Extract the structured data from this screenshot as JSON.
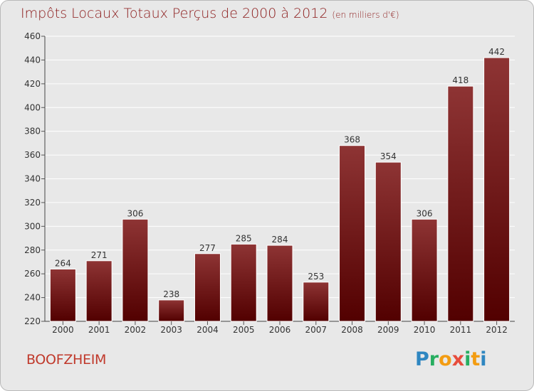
{
  "title": "Impôts Locaux Totaux Perçus de 2000 à 2012",
  "unit": "(en milliers d'€)",
  "city": "BOOFZHEIM",
  "logo": {
    "letters": [
      "P",
      "r",
      "o",
      "x",
      "i",
      "t",
      "i"
    ],
    "colors": [
      "#2e86c1",
      "#27ae60",
      "#f39c12",
      "#e74c3c",
      "#27ae60",
      "#f39c12",
      "#2e86c1"
    ]
  },
  "colors": {
    "bar_top": "#8e3434",
    "bar_bottom": "#520000",
    "grid": "#ffffff",
    "plot_bg": "#e8e8e8"
  },
  "chart_data": {
    "type": "bar",
    "title": "Impôts Locaux Totaux Perçus de 2000 à 2012",
    "xlabel": "",
    "ylabel": "",
    "categories": [
      "2000",
      "2001",
      "2002",
      "2003",
      "2004",
      "2005",
      "2006",
      "2007",
      "2008",
      "2009",
      "2010",
      "2011",
      "2012"
    ],
    "values": [
      264,
      271,
      306,
      238,
      277,
      285,
      284,
      253,
      368,
      354,
      306,
      418,
      442
    ],
    "ylim": [
      220,
      460
    ],
    "yticks": [
      220,
      240,
      260,
      280,
      300,
      320,
      340,
      360,
      380,
      400,
      420,
      440,
      460
    ],
    "grid": true
  }
}
